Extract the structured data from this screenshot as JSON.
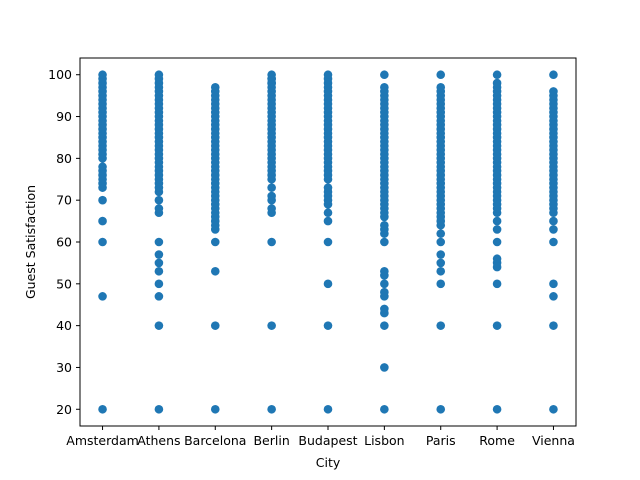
{
  "chart_data": {
    "type": "scatter",
    "title": "",
    "xlabel": "City",
    "ylabel": "Guest Satisfaction",
    "categories": [
      "Amsterdam",
      "Athens",
      "Barcelona",
      "Berlin",
      "Budapest",
      "Lisbon",
      "Paris",
      "Rome",
      "Vienna"
    ],
    "yticks": [
      20,
      30,
      40,
      50,
      60,
      70,
      80,
      90,
      100
    ],
    "ylim": [
      16,
      104
    ],
    "grid": false,
    "marker_color": "#1f77b4",
    "series": [
      {
        "x": [
          "Amsterdam",
          "Amsterdam",
          "Amsterdam",
          "Amsterdam",
          "Amsterdam",
          "Amsterdam",
          "Amsterdam",
          "Amsterdam",
          "Amsterdam",
          "Amsterdam",
          "Amsterdam",
          "Amsterdam",
          "Amsterdam",
          "Amsterdam",
          "Amsterdam",
          "Amsterdam",
          "Amsterdam",
          "Amsterdam",
          "Amsterdam",
          "Amsterdam",
          "Amsterdam",
          "Amsterdam",
          "Amsterdam",
          "Amsterdam",
          "Amsterdam",
          "Amsterdam",
          "Amsterdam",
          "Amsterdam",
          "Amsterdam",
          "Amsterdam",
          "Amsterdam",
          "Amsterdam"
        ],
        "y": [
          20,
          47,
          60,
          65,
          70,
          73,
          74,
          75,
          76,
          77,
          78,
          80,
          81,
          82,
          83,
          84,
          85,
          86,
          87,
          88,
          89,
          90,
          91,
          92,
          93,
          94,
          95,
          96,
          97,
          98,
          99,
          100
        ]
      },
      {
        "x": [
          "Athens",
          "Athens",
          "Athens",
          "Athens",
          "Athens",
          "Athens",
          "Athens",
          "Athens",
          "Athens",
          "Athens",
          "Athens",
          "Athens",
          "Athens",
          "Athens",
          "Athens",
          "Athens",
          "Athens",
          "Athens",
          "Athens",
          "Athens",
          "Athens",
          "Athens",
          "Athens",
          "Athens",
          "Athens",
          "Athens",
          "Athens",
          "Athens",
          "Athens",
          "Athens",
          "Athens",
          "Athens",
          "Athens",
          "Athens",
          "Athens",
          "Athens",
          "Athens",
          "Athens",
          "Athens",
          "Athens"
        ],
        "y": [
          20,
          40,
          47,
          50,
          53,
          55,
          57,
          60,
          67,
          68,
          70,
          72,
          73,
          74,
          75,
          76,
          77,
          78,
          79,
          80,
          81,
          82,
          83,
          84,
          85,
          86,
          87,
          88,
          89,
          90,
          91,
          92,
          93,
          94,
          95,
          96,
          97,
          98,
          99,
          100
        ]
      },
      {
        "x": [
          "Barcelona",
          "Barcelona",
          "Barcelona",
          "Barcelona",
          "Barcelona",
          "Barcelona",
          "Barcelona",
          "Barcelona",
          "Barcelona",
          "Barcelona",
          "Barcelona",
          "Barcelona",
          "Barcelona",
          "Barcelona",
          "Barcelona",
          "Barcelona",
          "Barcelona",
          "Barcelona",
          "Barcelona",
          "Barcelona",
          "Barcelona",
          "Barcelona",
          "Barcelona",
          "Barcelona",
          "Barcelona",
          "Barcelona",
          "Barcelona",
          "Barcelona",
          "Barcelona",
          "Barcelona",
          "Barcelona",
          "Barcelona",
          "Barcelona",
          "Barcelona",
          "Barcelona",
          "Barcelona",
          "Barcelona",
          "Barcelona",
          "Barcelona"
        ],
        "y": [
          20,
          40,
          53,
          60,
          63,
          64,
          65,
          66,
          67,
          68,
          69,
          70,
          71,
          72,
          73,
          74,
          75,
          76,
          77,
          78,
          79,
          80,
          81,
          82,
          83,
          84,
          85,
          86,
          87,
          88,
          89,
          90,
          91,
          92,
          93,
          94,
          95,
          96,
          97
        ]
      },
      {
        "x": [
          "Berlin",
          "Berlin",
          "Berlin",
          "Berlin",
          "Berlin",
          "Berlin",
          "Berlin",
          "Berlin",
          "Berlin",
          "Berlin",
          "Berlin",
          "Berlin",
          "Berlin",
          "Berlin",
          "Berlin",
          "Berlin",
          "Berlin",
          "Berlin",
          "Berlin",
          "Berlin",
          "Berlin",
          "Berlin",
          "Berlin",
          "Berlin",
          "Berlin",
          "Berlin",
          "Berlin",
          "Berlin",
          "Berlin",
          "Berlin",
          "Berlin",
          "Berlin",
          "Berlin",
          "Berlin",
          "Berlin",
          "Berlin"
        ],
        "y": [
          20,
          40,
          60,
          67,
          68,
          70,
          71,
          73,
          75,
          76,
          77,
          78,
          79,
          80,
          81,
          82,
          83,
          84,
          85,
          86,
          87,
          88,
          89,
          90,
          91,
          92,
          93,
          94,
          95,
          96,
          97,
          98,
          99,
          100,
          98,
          99
        ]
      },
      {
        "x": [
          "Budapest",
          "Budapest",
          "Budapest",
          "Budapest",
          "Budapest",
          "Budapest",
          "Budapest",
          "Budapest",
          "Budapest",
          "Budapest",
          "Budapest",
          "Budapest",
          "Budapest",
          "Budapest",
          "Budapest",
          "Budapest",
          "Budapest",
          "Budapest",
          "Budapest",
          "Budapest",
          "Budapest",
          "Budapest",
          "Budapest",
          "Budapest",
          "Budapest",
          "Budapest",
          "Budapest",
          "Budapest",
          "Budapest",
          "Budapest",
          "Budapest",
          "Budapest",
          "Budapest",
          "Budapest",
          "Budapest",
          "Budapest",
          "Budapest"
        ],
        "y": [
          20,
          40,
          50,
          60,
          65,
          67,
          69,
          70,
          71,
          72,
          73,
          75,
          76,
          77,
          78,
          79,
          80,
          81,
          82,
          83,
          84,
          85,
          86,
          87,
          88,
          89,
          90,
          91,
          92,
          93,
          94,
          95,
          96,
          97,
          98,
          99,
          100
        ]
      },
      {
        "x": [
          "Lisbon",
          "Lisbon",
          "Lisbon",
          "Lisbon",
          "Lisbon",
          "Lisbon",
          "Lisbon",
          "Lisbon",
          "Lisbon",
          "Lisbon",
          "Lisbon",
          "Lisbon",
          "Lisbon",
          "Lisbon",
          "Lisbon",
          "Lisbon",
          "Lisbon",
          "Lisbon",
          "Lisbon",
          "Lisbon",
          "Lisbon",
          "Lisbon",
          "Lisbon",
          "Lisbon",
          "Lisbon",
          "Lisbon",
          "Lisbon",
          "Lisbon",
          "Lisbon",
          "Lisbon",
          "Lisbon",
          "Lisbon",
          "Lisbon",
          "Lisbon",
          "Lisbon",
          "Lisbon",
          "Lisbon",
          "Lisbon",
          "Lisbon",
          "Lisbon",
          "Lisbon",
          "Lisbon",
          "Lisbon",
          "Lisbon",
          "Lisbon",
          "Lisbon",
          "Lisbon"
        ],
        "y": [
          20,
          30,
          40,
          43,
          44,
          47,
          48,
          50,
          52,
          53,
          60,
          62,
          63,
          64,
          66,
          67,
          68,
          69,
          70,
          71,
          72,
          73,
          74,
          75,
          76,
          77,
          78,
          79,
          80,
          81,
          82,
          83,
          84,
          85,
          86,
          87,
          88,
          89,
          90,
          91,
          92,
          93,
          94,
          95,
          96,
          97,
          100
        ]
      },
      {
        "x": [
          "Paris",
          "Paris",
          "Paris",
          "Paris",
          "Paris",
          "Paris",
          "Paris",
          "Paris",
          "Paris",
          "Paris",
          "Paris",
          "Paris",
          "Paris",
          "Paris",
          "Paris",
          "Paris",
          "Paris",
          "Paris",
          "Paris",
          "Paris",
          "Paris",
          "Paris",
          "Paris",
          "Paris",
          "Paris",
          "Paris",
          "Paris",
          "Paris",
          "Paris",
          "Paris",
          "Paris",
          "Paris",
          "Paris",
          "Paris",
          "Paris",
          "Paris",
          "Paris",
          "Paris",
          "Paris",
          "Paris",
          "Paris",
          "Paris",
          "Paris"
        ],
        "y": [
          20,
          40,
          50,
          53,
          55,
          57,
          60,
          62,
          64,
          65,
          66,
          67,
          68,
          69,
          70,
          71,
          72,
          73,
          74,
          75,
          76,
          77,
          78,
          79,
          80,
          81,
          82,
          83,
          84,
          85,
          86,
          87,
          88,
          89,
          90,
          91,
          92,
          93,
          94,
          95,
          96,
          97,
          100
        ]
      },
      {
        "x": [
          "Rome",
          "Rome",
          "Rome",
          "Rome",
          "Rome",
          "Rome",
          "Rome",
          "Rome",
          "Rome",
          "Rome",
          "Rome",
          "Rome",
          "Rome",
          "Rome",
          "Rome",
          "Rome",
          "Rome",
          "Rome",
          "Rome",
          "Rome",
          "Rome",
          "Rome",
          "Rome",
          "Rome",
          "Rome",
          "Rome",
          "Rome",
          "Rome",
          "Rome",
          "Rome",
          "Rome",
          "Rome",
          "Rome",
          "Rome",
          "Rome",
          "Rome",
          "Rome",
          "Rome",
          "Rome",
          "Rome",
          "Rome",
          "Rome"
        ],
        "y": [
          20,
          40,
          50,
          54,
          55,
          56,
          60,
          63,
          65,
          67,
          68,
          69,
          70,
          71,
          72,
          73,
          74,
          75,
          76,
          77,
          78,
          79,
          80,
          81,
          82,
          83,
          84,
          85,
          86,
          87,
          88,
          89,
          90,
          91,
          92,
          93,
          94,
          95,
          96,
          97,
          98,
          100
        ]
      },
      {
        "x": [
          "Vienna",
          "Vienna",
          "Vienna",
          "Vienna",
          "Vienna",
          "Vienna",
          "Vienna",
          "Vienna",
          "Vienna",
          "Vienna",
          "Vienna",
          "Vienna",
          "Vienna",
          "Vienna",
          "Vienna",
          "Vienna",
          "Vienna",
          "Vienna",
          "Vienna",
          "Vienna",
          "Vienna",
          "Vienna",
          "Vienna",
          "Vienna",
          "Vienna",
          "Vienna",
          "Vienna",
          "Vienna",
          "Vienna",
          "Vienna",
          "Vienna",
          "Vienna",
          "Vienna",
          "Vienna",
          "Vienna",
          "Vienna",
          "Vienna",
          "Vienna"
        ],
        "y": [
          20,
          40,
          47,
          50,
          60,
          63,
          65,
          67,
          68,
          69,
          70,
          71,
          72,
          73,
          74,
          75,
          76,
          77,
          78,
          79,
          80,
          81,
          82,
          83,
          84,
          85,
          86,
          87,
          88,
          89,
          90,
          91,
          92,
          93,
          94,
          95,
          96,
          100
        ]
      }
    ]
  }
}
